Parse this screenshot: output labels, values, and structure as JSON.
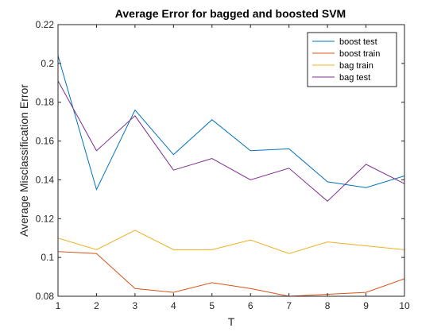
{
  "chart_data": {
    "type": "line",
    "title": "Average Error for bagged and boosted SVM",
    "xlabel": "T",
    "ylabel": "Average Misclassification Error",
    "x": [
      1,
      2,
      3,
      4,
      5,
      6,
      7,
      8,
      9,
      10
    ],
    "xlim": [
      1,
      10
    ],
    "ylim": [
      0.08,
      0.22
    ],
    "xticks": [
      "1",
      "2",
      "3",
      "4",
      "5",
      "6",
      "7",
      "8",
      "9",
      "10"
    ],
    "yticks": [
      "0.08",
      "0.1",
      "0.12",
      "0.14",
      "0.16",
      "0.18",
      "0.2",
      "0.22"
    ],
    "grid": false,
    "legend_position": "top-right",
    "series": [
      {
        "name": "boost test",
        "color": "#0072BD",
        "values": [
          0.204,
          0.135,
          0.176,
          0.153,
          0.171,
          0.155,
          0.156,
          0.139,
          0.136,
          0.142
        ]
      },
      {
        "name": "boost train",
        "color": "#D95319",
        "values": [
          0.103,
          0.102,
          0.084,
          0.082,
          0.087,
          0.084,
          0.08,
          0.081,
          0.082,
          0.089
        ]
      },
      {
        "name": "bag train",
        "color": "#EDB120",
        "values": [
          0.11,
          0.104,
          0.114,
          0.104,
          0.104,
          0.109,
          0.102,
          0.108,
          0.106,
          0.104
        ]
      },
      {
        "name": "bag test",
        "color": "#7E2F8E",
        "values": [
          0.191,
          0.155,
          0.173,
          0.145,
          0.151,
          0.14,
          0.146,
          0.129,
          0.148,
          0.138
        ]
      }
    ]
  }
}
